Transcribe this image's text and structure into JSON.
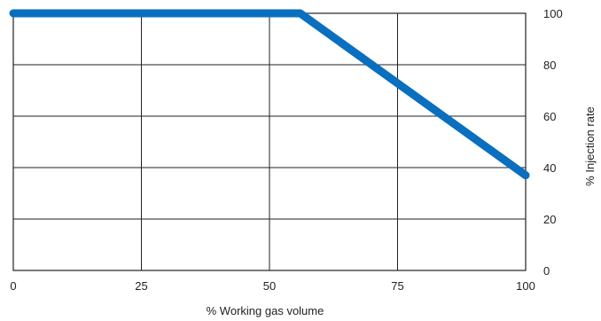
{
  "chart_data": {
    "type": "line",
    "xlabel": "% Working gas volume",
    "ylabel": "% Injection rate",
    "xlim": [
      0,
      100
    ],
    "ylim": [
      0,
      100
    ],
    "x_ticks": [
      "0",
      "25",
      "50",
      "75",
      "100"
    ],
    "y_ticks": [
      "0",
      "20",
      "40",
      "60",
      "80",
      "100"
    ],
    "grid": true,
    "y_axis_side": "right",
    "series": [
      {
        "x": [
          0,
          56,
          100
        ],
        "y": [
          100,
          100,
          37
        ],
        "color": "#0a6fbe"
      }
    ]
  }
}
